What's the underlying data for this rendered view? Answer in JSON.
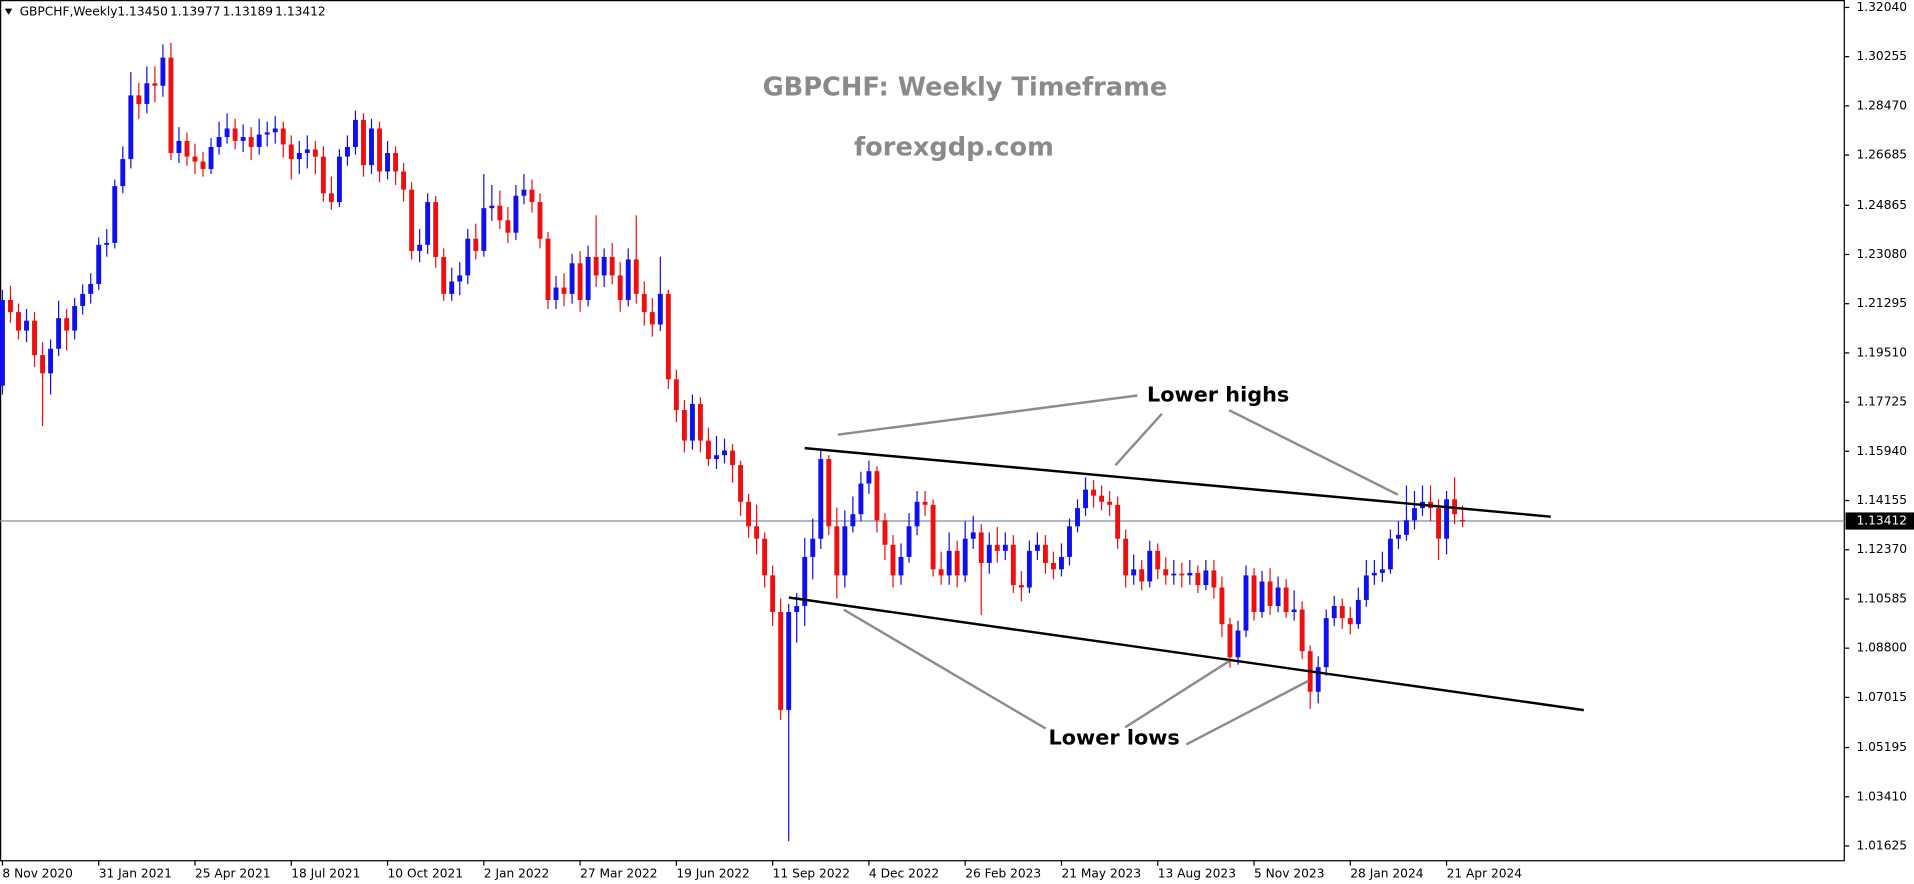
{
  "chart_data": {
    "type": "candlestick",
    "symbol": "GBPCHF,Weekly",
    "header_quote": [
      {
        "value": 1.1345,
        "label": "1.13450"
      },
      {
        "value": 1.13977,
        "label": "1.13977"
      },
      {
        "value": 1.13189,
        "label": "1.13189"
      },
      {
        "value": 1.13412,
        "label": "1.13412"
      }
    ],
    "title": "GBPCHF: Weekly Timeframe",
    "subtitle": "forexgdp.com",
    "annotations": [
      "Lower highs",
      "Lower lows"
    ],
    "up_color": "#1010ee",
    "down_color": "#ee1010",
    "current_price": 1.13412,
    "ylim": [
      1.0109,
      1.3231
    ],
    "yticks": [
      {
        "value": 1.3204,
        "label": "1.32040"
      },
      1.30255,
      {
        "value": 1.2847,
        "label": "1.28470"
      },
      1.26685,
      1.24865,
      {
        "value": 1.2308,
        "label": "1.23080"
      },
      1.21295,
      {
        "value": 1.1951,
        "label": "1.19510"
      },
      1.17725,
      {
        "value": 1.1594,
        "label": "1.15940"
      },
      1.14155,
      {
        "value": 1.1237,
        "label": "1.12370"
      },
      1.10585,
      {
        "value": 1.088,
        "label": "1.08800"
      },
      1.07015,
      1.05195,
      {
        "value": 1.0341,
        "label": "1.03410"
      },
      1.01625
    ],
    "grid": false,
    "categories": [
      "8 Nov 2020",
      null,
      null,
      null,
      null,
      null,
      null,
      null,
      null,
      null,
      null,
      null,
      "31 Jan 2021",
      null,
      null,
      null,
      null,
      null,
      null,
      null,
      null,
      null,
      null,
      null,
      "25 Apr 2021",
      null,
      null,
      null,
      null,
      null,
      null,
      null,
      null,
      null,
      null,
      null,
      "18 Jul 2021",
      null,
      null,
      null,
      null,
      null,
      null,
      null,
      null,
      null,
      null,
      null,
      "10 Oct 2021",
      null,
      null,
      null,
      null,
      null,
      null,
      null,
      null,
      null,
      null,
      null,
      "2 Jan 2022",
      null,
      null,
      null,
      null,
      null,
      null,
      null,
      null,
      null,
      null,
      null,
      "27 Mar 2022",
      null,
      null,
      null,
      null,
      null,
      null,
      null,
      null,
      null,
      null,
      null,
      "19 Jun 2022",
      null,
      null,
      null,
      null,
      null,
      null,
      null,
      null,
      null,
      null,
      null,
      "11 Sep 2022",
      null,
      null,
      null,
      null,
      null,
      null,
      null,
      null,
      null,
      null,
      null,
      "4 Dec 2022",
      null,
      null,
      null,
      null,
      null,
      null,
      null,
      null,
      null,
      null,
      null,
      "26 Feb 2023",
      null,
      null,
      null,
      null,
      null,
      null,
      null,
      null,
      null,
      null,
      null,
      "21 May 2023",
      null,
      null,
      null,
      null,
      null,
      null,
      null,
      null,
      null,
      null,
      null,
      "13 Aug 2023",
      null,
      null,
      null,
      null,
      null,
      null,
      null,
      null,
      null,
      null,
      null,
      "5 Nov 2023",
      null,
      null,
      null,
      null,
      null,
      null,
      null,
      null,
      null,
      null,
      null,
      "28 Jan 2024",
      null,
      null,
      null,
      null,
      null,
      null,
      null,
      null,
      null,
      null,
      null,
      "21 Apr 2024",
      null,
      null
    ],
    "ohlc": [
      [
        1.1832,
        1.218,
        1.18,
        1.2143
      ],
      [
        1.2143,
        1.2195,
        1.206,
        1.2099
      ],
      [
        1.2099,
        1.213,
        1.2,
        1.2032
      ],
      [
        1.2032,
        1.211,
        1.199,
        1.2068
      ],
      [
        1.2068,
        1.21,
        1.19,
        1.1943
      ],
      [
        1.1943,
        1.199,
        1.1685,
        1.1877
      ],
      [
        1.1877,
        1.2,
        1.18,
        1.1966
      ],
      [
        1.1966,
        1.214,
        1.194,
        1.2077
      ],
      [
        1.2077,
        1.211,
        1.196,
        1.2032
      ],
      [
        1.2032,
        1.215,
        1.2,
        1.2121
      ],
      [
        1.2121,
        1.22,
        1.209,
        1.2165
      ],
      [
        1.2165,
        1.224,
        1.213,
        1.2201
      ],
      [
        1.2201,
        1.237,
        1.218,
        1.2343
      ],
      [
        1.2343,
        1.24,
        1.23,
        1.235
      ],
      [
        1.235,
        1.258,
        1.233,
        1.2556
      ],
      [
        1.2556,
        1.27,
        1.253,
        1.2654
      ],
      [
        1.2654,
        1.297,
        1.262,
        1.2885
      ],
      [
        1.2885,
        1.293,
        1.28,
        1.2854
      ],
      [
        1.2854,
        1.299,
        1.282,
        1.2929
      ],
      [
        1.2929,
        1.299,
        1.286,
        1.292
      ],
      [
        1.292,
        1.307,
        1.288,
        1.3022
      ],
      [
        1.3022,
        1.3075,
        1.265,
        1.2676
      ],
      [
        1.2676,
        1.277,
        1.264,
        1.272
      ],
      [
        1.272,
        1.275,
        1.263,
        1.2663
      ],
      [
        1.2663,
        1.271,
        1.26,
        1.2645
      ],
      [
        1.2645,
        1.268,
        1.259,
        1.2618
      ],
      [
        1.2618,
        1.273,
        1.26,
        1.2698
      ],
      [
        1.2698,
        1.279,
        1.267,
        1.2734
      ],
      [
        1.2734,
        1.282,
        1.271,
        1.2765
      ],
      [
        1.2765,
        1.28,
        1.269,
        1.272
      ],
      [
        1.272,
        1.278,
        1.268,
        1.2734
      ],
      [
        1.2734,
        1.277,
        1.265,
        1.2698
      ],
      [
        1.2698,
        1.28,
        1.267,
        1.2743
      ],
      [
        1.2743,
        1.279,
        1.27,
        1.2751
      ],
      [
        1.2751,
        1.281,
        1.271,
        1.2765
      ],
      [
        1.2765,
        1.279,
        1.266,
        1.2707
      ],
      [
        1.2707,
        1.274,
        1.258,
        1.2654
      ],
      [
        1.2654,
        1.272,
        1.26,
        1.2676
      ],
      [
        1.2676,
        1.274,
        1.262,
        1.2689
      ],
      [
        1.2689,
        1.272,
        1.26,
        1.2663
      ],
      [
        1.2663,
        1.27,
        1.25,
        1.253
      ],
      [
        1.253,
        1.259,
        1.247,
        1.2498
      ],
      [
        1.2498,
        1.269,
        1.248,
        1.2663
      ],
      [
        1.2663,
        1.274,
        1.263,
        1.2698
      ],
      [
        1.2698,
        1.283,
        1.267,
        1.2796
      ],
      [
        1.2796,
        1.282,
        1.259,
        1.2632
      ],
      [
        1.2632,
        1.28,
        1.26,
        1.2765
      ],
      [
        1.2765,
        1.279,
        1.257,
        1.2609
      ],
      [
        1.2609,
        1.272,
        1.258,
        1.2676
      ],
      [
        1.2676,
        1.27,
        1.256,
        1.2609
      ],
      [
        1.2609,
        1.264,
        1.25,
        1.2543
      ],
      [
        1.2543,
        1.257,
        1.229,
        1.2321
      ],
      [
        1.2321,
        1.24,
        1.228,
        1.2343
      ],
      [
        1.2343,
        1.253,
        1.231,
        1.2498
      ],
      [
        1.2498,
        1.252,
        1.226,
        1.2299
      ],
      [
        1.2299,
        1.233,
        1.214,
        1.2165
      ],
      [
        1.2165,
        1.226,
        1.214,
        1.221
      ],
      [
        1.221,
        1.228,
        1.216,
        1.2232
      ],
      [
        1.2232,
        1.24,
        1.22,
        1.2365
      ],
      [
        1.2365,
        1.242,
        1.229,
        1.2321
      ],
      [
        1.2321,
        1.26,
        1.23,
        1.2476
      ],
      [
        1.2476,
        1.256,
        1.243,
        1.2485
      ],
      [
        1.2485,
        1.254,
        1.24,
        1.2432
      ],
      [
        1.2432,
        1.248,
        1.235,
        1.2387
      ],
      [
        1.2387,
        1.256,
        1.236,
        1.2521
      ],
      [
        1.2521,
        1.26,
        1.249,
        1.2543
      ],
      [
        1.2543,
        1.258,
        1.246,
        1.2498
      ],
      [
        1.2498,
        1.253,
        1.233,
        1.2365
      ],
      [
        1.2365,
        1.239,
        1.211,
        1.2143
      ],
      [
        1.2143,
        1.223,
        1.211,
        1.2188
      ],
      [
        1.2188,
        1.224,
        1.212,
        1.2165
      ],
      [
        1.2165,
        1.231,
        1.213,
        1.2276
      ],
      [
        1.2276,
        1.232,
        1.21,
        1.2143
      ],
      [
        1.2143,
        1.234,
        1.212,
        1.2299
      ],
      [
        1.2299,
        1.245,
        1.219,
        1.2232
      ],
      [
        1.2232,
        1.233,
        1.219,
        1.2299
      ],
      [
        1.2299,
        1.235,
        1.22,
        1.2232
      ],
      [
        1.2232,
        1.228,
        1.21,
        1.2143
      ],
      [
        1.2143,
        1.233,
        1.212,
        1.229
      ],
      [
        1.229,
        1.245,
        1.213,
        1.2165
      ],
      [
        1.2165,
        1.221,
        1.205,
        1.2099
      ],
      [
        1.2099,
        1.215,
        1.201,
        1.2054
      ],
      [
        1.2054,
        1.23,
        1.203,
        1.2165
      ],
      [
        1.2165,
        1.218,
        1.182,
        1.1855
      ],
      [
        1.1855,
        1.189,
        1.17,
        1.1744
      ],
      [
        1.1744,
        1.178,
        1.159,
        1.1633
      ],
      [
        1.1633,
        1.18,
        1.16,
        1.1766
      ],
      [
        1.1766,
        1.179,
        1.159,
        1.1633
      ],
      [
        1.1633,
        1.168,
        1.154,
        1.1566
      ],
      [
        1.1566,
        1.165,
        1.153,
        1.158
      ],
      [
        1.158,
        1.164,
        1.155,
        1.1597
      ],
      [
        1.1597,
        1.162,
        1.148,
        1.1544
      ],
      [
        1.1544,
        1.156,
        1.136,
        1.1411
      ],
      [
        1.1411,
        1.144,
        1.128,
        1.1322
      ],
      [
        1.1322,
        1.14,
        1.122,
        1.1277
      ],
      [
        1.1277,
        1.13,
        1.11,
        1.1144
      ],
      [
        1.1144,
        1.118,
        1.096,
        1.1011
      ],
      [
        1.1011,
        1.106,
        1.062,
        1.0656
      ],
      [
        1.0656,
        1.104,
        1.018,
        1.1011
      ],
      [
        1.1011,
        1.108,
        1.09,
        1.1033
      ],
      [
        1.1033,
        1.128,
        1.096,
        1.1211
      ],
      [
        1.1211,
        1.135,
        1.113,
        1.1277
      ],
      [
        1.1277,
        1.16,
        1.124,
        1.1566
      ],
      [
        1.1566,
        1.158,
        1.129,
        1.1322
      ],
      [
        1.1322,
        1.139,
        1.106,
        1.1144
      ],
      [
        1.1144,
        1.138,
        1.11,
        1.1322
      ],
      [
        1.1322,
        1.143,
        1.13,
        1.1366
      ],
      [
        1.1366,
        1.152,
        1.134,
        1.1477
      ],
      [
        1.1477,
        1.156,
        1.144,
        1.1522
      ],
      [
        1.1522,
        1.154,
        1.13,
        1.1344
      ],
      [
        1.1344,
        1.137,
        1.12,
        1.1255
      ],
      [
        1.1255,
        1.129,
        1.11,
        1.1144
      ],
      [
        1.1144,
        1.126,
        1.111,
        1.1211
      ],
      [
        1.1211,
        1.137,
        1.119,
        1.1322
      ],
      [
        1.1322,
        1.145,
        1.129,
        1.1411
      ],
      [
        1.1411,
        1.145,
        1.136,
        1.14
      ],
      [
        1.14,
        1.142,
        1.114,
        1.1166
      ],
      [
        1.1166,
        1.123,
        1.111,
        1.1144
      ],
      [
        1.1144,
        1.13,
        1.111,
        1.1233
      ],
      [
        1.1233,
        1.127,
        1.11,
        1.1144
      ],
      [
        1.1144,
        1.134,
        1.112,
        1.1277
      ],
      [
        1.1277,
        1.136,
        1.124,
        1.13
      ],
      [
        1.13,
        1.133,
        1.1,
        1.1189
      ],
      [
        1.1189,
        1.13,
        1.115,
        1.1255
      ],
      [
        1.1255,
        1.132,
        1.119,
        1.1233
      ],
      [
        1.1233,
        1.13,
        1.12,
        1.1255
      ],
      [
        1.1255,
        1.129,
        1.108,
        1.1109
      ],
      [
        1.1109,
        1.116,
        1.105,
        1.11
      ],
      [
        1.11,
        1.127,
        1.108,
        1.1233
      ],
      [
        1.1233,
        1.13,
        1.12,
        1.1255
      ],
      [
        1.1255,
        1.129,
        1.115,
        1.1189
      ],
      [
        1.1189,
        1.123,
        1.113,
        1.1166
      ],
      [
        1.1166,
        1.126,
        1.114,
        1.1211
      ],
      [
        1.1211,
        1.135,
        1.118,
        1.1322
      ],
      [
        1.1322,
        1.142,
        1.13,
        1.1388
      ],
      [
        1.1388,
        1.15,
        1.136,
        1.1455
      ],
      [
        1.1455,
        1.149,
        1.139,
        1.1433
      ],
      [
        1.1433,
        1.147,
        1.138,
        1.1411
      ],
      [
        1.1411,
        1.145,
        1.136,
        1.14
      ],
      [
        1.14,
        1.143,
        1.124,
        1.1277
      ],
      [
        1.1277,
        1.131,
        1.11,
        1.1144
      ],
      [
        1.1144,
        1.122,
        1.111,
        1.1166
      ],
      [
        1.1166,
        1.12,
        1.109,
        1.1122
      ],
      [
        1.1122,
        1.127,
        1.11,
        1.1233
      ],
      [
        1.1233,
        1.126,
        1.113,
        1.1166
      ],
      [
        1.1166,
        1.121,
        1.111,
        1.1144
      ],
      [
        1.1144,
        1.12,
        1.111,
        1.115
      ],
      [
        1.115,
        1.119,
        1.11,
        1.1144
      ],
      [
        1.1144,
        1.12,
        1.111,
        1.1153
      ],
      [
        1.1153,
        1.118,
        1.108,
        1.1109
      ],
      [
        1.1109,
        1.12,
        1.109,
        1.1162
      ],
      [
        1.1162,
        1.12,
        1.106,
        1.11
      ],
      [
        1.11,
        1.114,
        1.092,
        1.0967
      ],
      [
        1.0967,
        1.099,
        1.081,
        1.0847
      ],
      [
        1.0847,
        1.098,
        1.082,
        1.0944
      ],
      [
        1.0944,
        1.118,
        1.092,
        1.1144
      ],
      [
        1.1144,
        1.117,
        1.098,
        1.1011
      ],
      [
        1.1011,
        1.116,
        1.099,
        1.1122
      ],
      [
        1.1122,
        1.117,
        1.1,
        1.1033
      ],
      [
        1.1033,
        1.114,
        1.101,
        1.11
      ],
      [
        1.11,
        1.113,
        1.099,
        1.1011
      ],
      [
        1.1011,
        1.109,
        1.098,
        1.102
      ],
      [
        1.102,
        1.105,
        1.084,
        1.0869
      ],
      [
        1.0869,
        1.089,
        1.066,
        1.0722
      ],
      [
        1.0722,
        1.085,
        1.068,
        1.0811
      ],
      [
        1.0811,
        1.102,
        1.078,
        1.0989
      ],
      [
        1.0989,
        1.107,
        1.096,
        1.1033
      ],
      [
        1.1033,
        1.106,
        1.095,
        1.0989
      ],
      [
        1.0989,
        1.103,
        1.093,
        1.0967
      ],
      [
        1.0967,
        1.11,
        1.095,
        1.1055
      ],
      [
        1.1055,
        1.12,
        1.103,
        1.1144
      ],
      [
        1.1144,
        1.12,
        1.111,
        1.1153
      ],
      [
        1.1153,
        1.123,
        1.112,
        1.1166
      ],
      [
        1.1166,
        1.131,
        1.115,
        1.1277
      ],
      [
        1.1277,
        1.134,
        1.124,
        1.1291
      ],
      [
        1.1291,
        1.147,
        1.127,
        1.1344
      ],
      [
        1.1344,
        1.145,
        1.131,
        1.1388
      ],
      [
        1.1388,
        1.147,
        1.136,
        1.1411
      ],
      [
        1.1411,
        1.147,
        1.134,
        1.1388
      ],
      [
        1.1388,
        1.142,
        1.12,
        1.1277
      ],
      [
        1.1277,
        1.145,
        1.122,
        1.142
      ],
      [
        1.142,
        1.15,
        1.133,
        1.1366
      ],
      [
        1.1345,
        1.13977,
        1.13189,
        1.13412
      ]
    ]
  }
}
